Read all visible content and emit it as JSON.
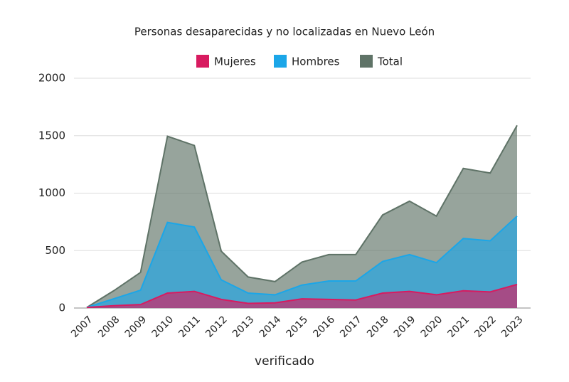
{
  "chart_data": {
    "type": "area",
    "title": "Personas desaparecidas y no localizadas en Nuevo León",
    "categories": [
      "2007",
      "2008",
      "2009",
      "2010",
      "2011",
      "2012",
      "2013",
      "2014",
      "2015",
      "2016",
      "2017",
      "2018",
      "2019",
      "2020",
      "2021",
      "2022",
      "2023"
    ],
    "series": [
      {
        "name": "Mujeres",
        "color": "#d81b60",
        "values": [
          5,
          20,
          30,
          130,
          145,
          75,
          40,
          45,
          80,
          75,
          70,
          130,
          145,
          115,
          150,
          140,
          205
        ]
      },
      {
        "name": "Hombres",
        "color": "#1ba6e8",
        "values": [
          5,
          80,
          155,
          745,
          705,
          245,
          130,
          115,
          200,
          235,
          235,
          405,
          465,
          395,
          605,
          585,
          800
        ]
      },
      {
        "name": "Total",
        "color": "#5f7367",
        "values": [
          5,
          150,
          310,
          1495,
          1415,
          495,
          270,
          230,
          400,
          465,
          465,
          810,
          930,
          800,
          1215,
          1175,
          1590
        ]
      }
    ],
    "ylim": [
      0,
      2000
    ],
    "yticks": [
      0,
      500,
      1000,
      1500,
      2000
    ],
    "grid": true,
    "brand": "verificado"
  }
}
